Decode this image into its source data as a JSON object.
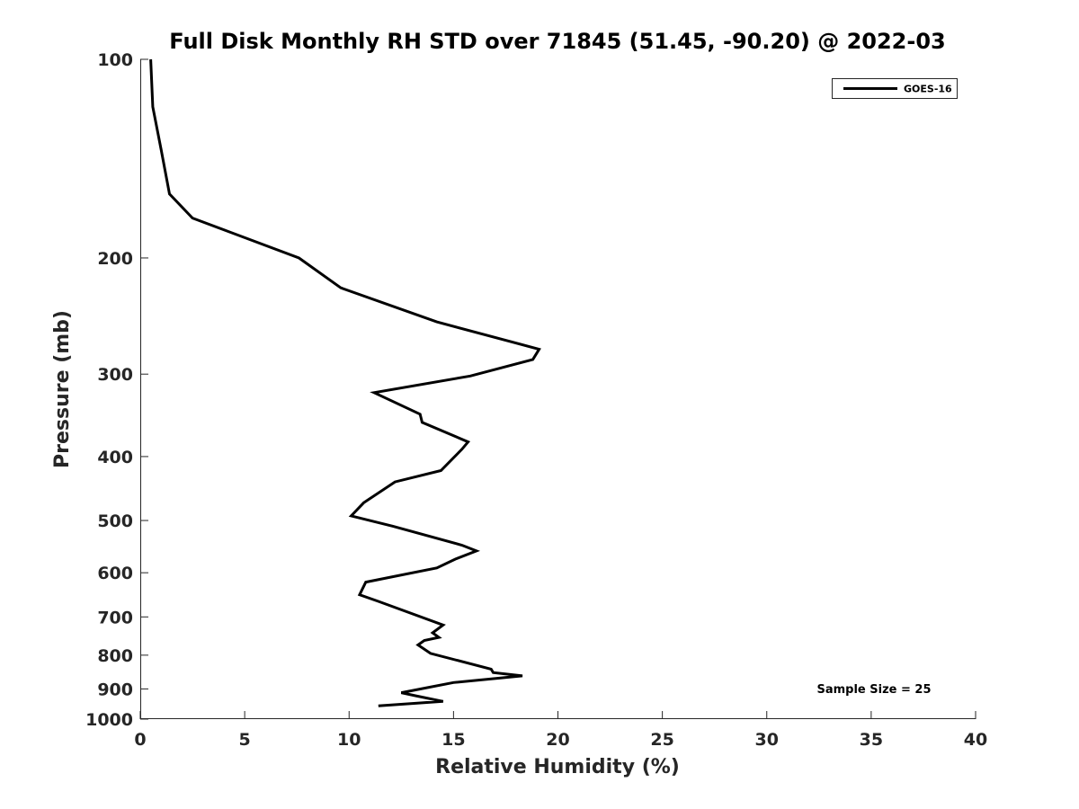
{
  "chart_data": {
    "type": "line",
    "title": "Full Disk Monthly RH STD over 71845 (51.45, -90.20) @ 2022-03",
    "xlabel": "Relative Humidity (%)",
    "ylabel": "Pressure (mb)",
    "xlim": [
      0,
      40
    ],
    "ylim": [
      1000,
      100
    ],
    "y_scale": "log",
    "y_reversed": true,
    "grid": false,
    "legend_placement": "top-right",
    "x_ticks": [
      "0",
      "5",
      "10",
      "15",
      "20",
      "25",
      "30",
      "35",
      "40"
    ],
    "y_ticks": [
      "100",
      "200",
      "300",
      "400",
      "500",
      "600",
      "700",
      "800",
      "900",
      "1000"
    ],
    "annotation": "Sample Size = 25",
    "series": [
      {
        "name": "GOES-16",
        "color": "#000000",
        "x": [
          0.5,
          0.6,
          1.0,
          1.4,
          2.5,
          7.6,
          9.6,
          14.2,
          19.1,
          18.8,
          15.8,
          11.2,
          13.4,
          13.5,
          15.7,
          15.4,
          14.4,
          12.2,
          10.7,
          10.1,
          12.1,
          15.4,
          16.1,
          15.1,
          14.2,
          10.8,
          10.5,
          11.4,
          14.5,
          14.0,
          14.3,
          13.6,
          13.3,
          13.9,
          16.8,
          16.9,
          18.3,
          15.0,
          12.5,
          13.2,
          14.5,
          11.4
        ],
        "y": [
          100,
          118,
          137,
          160,
          174,
          200,
          222,
          250,
          275,
          285,
          302,
          320,
          345,
          355,
          380,
          390,
          420,
          437,
          470,
          492,
          510,
          545,
          556,
          572,
          590,
          620,
          648,
          663,
          720,
          740,
          752,
          760,
          772,
          795,
          840,
          850,
          860,
          880,
          912,
          922,
          940,
          955
        ]
      }
    ]
  }
}
